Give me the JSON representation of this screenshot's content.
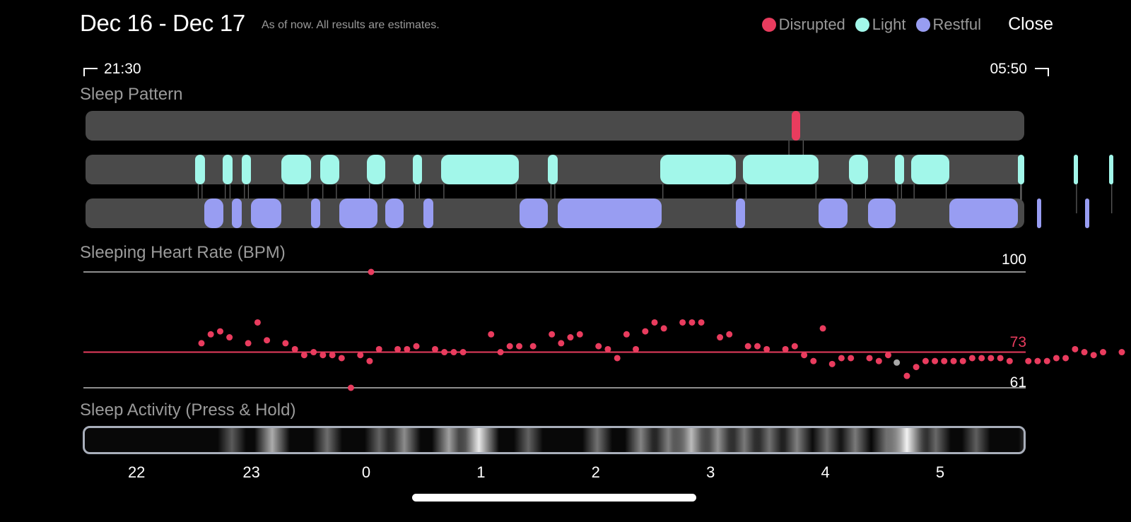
{
  "header": {
    "title": "Dec 16 - Dec 17",
    "subtitle": "As of now. All results are estimates.",
    "close_label": "Close"
  },
  "legend": [
    {
      "label": "Disrupted",
      "color": "#e93c5e"
    },
    {
      "label": "Light",
      "color": "#a2f7ea"
    },
    {
      "label": "Restful",
      "color": "#989df2"
    }
  ],
  "time_range": {
    "start": "21:30",
    "end": "05:50"
  },
  "sleep_pattern": {
    "label": "Sleep Pattern",
    "disrupted": [
      [
        3.695,
        3.77
      ]
    ],
    "light": [
      [
        -1.5,
        -1.417
      ],
      [
        -1.264,
        -1.174
      ],
      [
        -1.097,
        -1.014
      ],
      [
        -0.753,
        -0.493
      ],
      [
        -0.414,
        -0.247
      ],
      [
        -0.008,
        0.155
      ],
      [
        0.392,
        0.475
      ],
      [
        0.64,
        1.319
      ],
      [
        1.573,
        1.656
      ],
      [
        2.548,
        3.207
      ],
      [
        3.272,
        3.93
      ],
      [
        4.196,
        4.362
      ],
      [
        4.594,
        4.675
      ],
      [
        4.736,
        5.065
      ],
      [
        5.664,
        5.832
      ],
      [
        6.151,
        6.234
      ],
      [
        6.458,
        6.623
      ]
    ],
    "restful": [
      [
        -1.422,
        -1.256
      ],
      [
        -1.183,
        -1.097
      ],
      [
        -1.014,
        -0.753
      ],
      [
        -0.49,
        -0.41
      ],
      [
        -0.247,
        0.087
      ],
      [
        0.155,
        0.314
      ],
      [
        0.487,
        0.571
      ],
      [
        1.322,
        1.573
      ],
      [
        1.656,
        2.56
      ],
      [
        3.207,
        3.291
      ],
      [
        3.93,
        4.183
      ],
      [
        4.362,
        4.602
      ],
      [
        5.065,
        5.664
      ],
      [
        5.832,
        6.163
      ],
      [
        6.247,
        6.491
      ],
      [
        6.656,
        6.745
      ]
    ]
  },
  "heart_rate": {
    "label": "Sleeping Heart Rate (BPM)",
    "max_label": "100",
    "avg_label": "73",
    "min_label": "61",
    "max": 100,
    "avg": 73,
    "min": 61,
    "point_color": "#e93c5e",
    "points": [
      [
        -1.447,
        76
      ],
      [
        -1.366,
        79
      ],
      [
        -1.284,
        80
      ],
      [
        -1.203,
        78
      ],
      [
        -1.04,
        76
      ],
      [
        -0.958,
        83
      ],
      [
        -0.877,
        77
      ],
      [
        -0.715,
        76
      ],
      [
        -0.633,
        74
      ],
      [
        -0.552,
        72
      ],
      [
        -0.47,
        73
      ],
      [
        -0.389,
        72
      ],
      [
        -0.307,
        72
      ],
      [
        -0.226,
        71
      ],
      [
        -0.145,
        61
      ],
      [
        -0.063,
        72
      ],
      [
        0.018,
        70
      ],
      [
        0.1,
        74
      ],
      [
        0.262,
        74
      ],
      [
        0.344,
        74
      ],
      [
        0.425,
        75
      ],
      [
        0.588,
        74
      ],
      [
        0.669,
        73
      ],
      [
        0.751,
        73
      ],
      [
        0.832,
        73
      ],
      [
        1.076,
        79
      ],
      [
        1.158,
        73
      ],
      [
        1.239,
        75
      ],
      [
        1.321,
        75
      ],
      [
        1.442,
        75
      ],
      [
        1.605,
        79
      ],
      [
        1.686,
        76
      ],
      [
        1.767,
        78
      ],
      [
        1.849,
        79
      ],
      [
        2.012,
        75
      ],
      [
        2.093,
        74
      ],
      [
        2.175,
        71
      ],
      [
        2.256,
        79
      ],
      [
        2.337,
        74
      ],
      [
        2.419,
        80
      ],
      [
        2.5,
        83
      ],
      [
        2.581,
        81
      ],
      [
        2.744,
        83
      ],
      [
        2.826,
        83
      ],
      [
        2.907,
        83
      ],
      [
        3.07,
        78
      ],
      [
        3.151,
        79
      ],
      [
        3.314,
        75
      ],
      [
        3.396,
        75
      ],
      [
        3.477,
        74
      ],
      [
        3.64,
        74
      ],
      [
        3.721,
        75
      ],
      [
        3.803,
        72
      ],
      [
        3.884,
        70
      ],
      [
        3.966,
        81
      ],
      [
        4.047,
        69
      ],
      [
        4.128,
        71
      ],
      [
        4.21,
        71
      ],
      [
        4.372,
        71
      ],
      [
        4.454,
        70
      ],
      [
        4.535,
        72
      ],
      [
        4.698,
        65
      ],
      [
        4.779,
        68
      ],
      [
        4.861,
        70
      ],
      [
        4.942,
        70
      ],
      [
        5.023,
        70
      ],
      [
        5.105,
        70
      ],
      [
        5.186,
        70
      ],
      [
        5.267,
        71
      ],
      [
        5.349,
        71
      ],
      [
        5.43,
        71
      ],
      [
        5.512,
        71
      ],
      [
        5.593,
        70
      ],
      [
        5.756,
        70
      ],
      [
        5.837,
        70
      ],
      [
        5.919,
        70
      ],
      [
        6.0,
        71
      ],
      [
        6.081,
        71
      ],
      [
        6.163,
        74
      ],
      [
        6.244,
        73
      ],
      [
        6.325,
        72
      ],
      [
        6.407,
        73
      ],
      [
        6.57,
        73
      ]
    ],
    "gray_point": [
      4.616,
      69.5
    ],
    "outlier": [
      -0.05,
      100
    ]
  },
  "sleep_activity": {
    "label": "Sleep Activity (Press & Hold)",
    "peaks": [
      [
        -1.18,
        0.18
      ],
      [
        -0.83,
        0.62
      ],
      [
        -0.35,
        0.28
      ],
      [
        0.1,
        0.22
      ],
      [
        0.32,
        0.45
      ],
      [
        0.71,
        0.55
      ],
      [
        0.97,
        0.95
      ],
      [
        1.4,
        0.22
      ],
      [
        2.0,
        0.3
      ],
      [
        2.38,
        0.4
      ],
      [
        2.62,
        0.38
      ],
      [
        2.82,
        0.7
      ],
      [
        3.05,
        0.48
      ],
      [
        3.28,
        0.35
      ],
      [
        3.5,
        0.3
      ],
      [
        3.74,
        0.38
      ],
      [
        4.0,
        0.28
      ],
      [
        4.25,
        0.35
      ],
      [
        4.52,
        0.3
      ],
      [
        4.7,
        1.0
      ],
      [
        4.95,
        0.25
      ],
      [
        5.3,
        0.2
      ],
      [
        5.8,
        0.25
      ],
      [
        6.25,
        0.32
      ],
      [
        6.52,
        0.55
      ]
    ]
  },
  "x_axis": {
    "ticks": [
      "22",
      "23",
      "0",
      "1",
      "2",
      "3",
      "4",
      "5"
    ]
  }
}
